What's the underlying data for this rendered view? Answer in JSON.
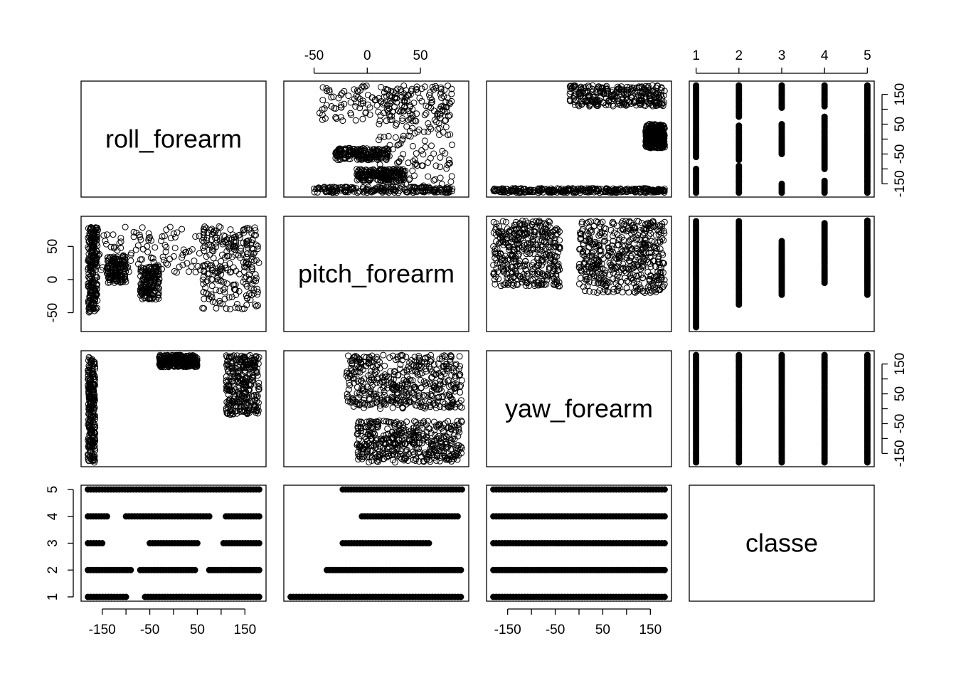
{
  "chart_data": {
    "type": "scatter",
    "layout": "pairs-matrix",
    "variables": [
      {
        "name": "roll_forearm",
        "range": [
          -180,
          180
        ],
        "ticks": [
          -150,
          -100,
          -50,
          0,
          50,
          100,
          150
        ],
        "tick_labels": [
          "-150",
          "",
          "-50",
          "",
          "50",
          "",
          "150"
        ]
      },
      {
        "name": "pitch_forearm",
        "range": [
          -72,
          89
        ],
        "ticks": [
          -50,
          0,
          50
        ],
        "tick_labels": [
          "-50",
          "0",
          "50"
        ]
      },
      {
        "name": "yaw_forearm",
        "range": [
          -180,
          180
        ],
        "ticks": [
          -150,
          -100,
          -50,
          0,
          50,
          100,
          150
        ],
        "tick_labels": [
          "-150",
          "",
          "-50",
          "",
          "50",
          "",
          "150"
        ]
      },
      {
        "name": "classe",
        "range": [
          1,
          5
        ],
        "ticks": [
          1,
          2,
          3,
          4,
          5
        ],
        "tick_labels": [
          "1",
          "2",
          "3",
          "4",
          "5"
        ]
      }
    ],
    "class_coverage": {
      "roll_forearm": {
        "1": [
          [
            -180,
            -100
          ],
          [
            -60,
            180
          ]
        ],
        "2": [
          [
            -180,
            -90
          ],
          [
            -70,
            45
          ],
          [
            75,
            180
          ]
        ],
        "3": [
          [
            -180,
            -150
          ],
          [
            -50,
            50
          ],
          [
            105,
            180
          ]
        ],
        "4": [
          [
            -180,
            -140
          ],
          [
            -100,
            75
          ],
          [
            110,
            180
          ]
        ],
        "5": [
          [
            -180,
            180
          ]
        ]
      },
      "pitch_forearm": {
        "1": [
          [
            -72,
            88
          ]
        ],
        "2": [
          [
            -38,
            88
          ]
        ],
        "3": [
          [
            -23,
            58
          ]
        ],
        "4": [
          [
            -5,
            85
          ]
        ],
        "5": [
          [
            -23,
            89
          ]
        ]
      },
      "yaw_forearm": {
        "1": [
          [
            -180,
            180
          ]
        ],
        "2": [
          [
            -180,
            180
          ]
        ],
        "3": [
          [
            -180,
            180
          ]
        ],
        "4": [
          [
            -180,
            180
          ]
        ],
        "5": [
          [
            -180,
            180
          ]
        ]
      }
    },
    "pairwise_clouds": {
      "roll_vs_pitch": {
        "x": "roll_forearm",
        "y": "pitch_forearm",
        "dense_regions": [
          {
            "x": [
              -180,
              180
            ],
            "y": [
              10,
              80
            ]
          },
          {
            "x": [
              -180,
              -160
            ],
            "y": [
              -50,
              80
            ]
          },
          {
            "x": [
              60,
              180
            ],
            "y": [
              -45,
              80
            ]
          },
          {
            "x": [
              -140,
              -100
            ],
            "y": [
              -10,
              35
            ]
          },
          {
            "x": [
              -70,
              -30
            ],
            "y": [
              -30,
              20
            ]
          }
        ],
        "gaps": [
          {
            "x": [
              -150,
              -80
            ],
            "y": [
              -72,
              -5
            ]
          },
          {
            "x": [
              -30,
              40
            ],
            "y": [
              -72,
              0
            ]
          }
        ]
      },
      "roll_vs_yaw": {
        "x": "roll_forearm",
        "y": "yaw_forearm",
        "dense_regions": [
          {
            "x": [
              -180,
              -165
            ],
            "y": [
              -180,
              180
            ]
          },
          {
            "x": [
              110,
              180
            ],
            "y": [
              -20,
              180
            ]
          },
          {
            "x": [
              -30,
              50
            ],
            "y": [
              140,
              180
            ]
          }
        ]
      },
      "pitch_vs_yaw": {
        "x": "pitch_forearm",
        "y": "yaw_forearm",
        "dense_regions": [
          {
            "x": [
              -20,
              89
            ],
            "y": [
              0,
              180
            ]
          },
          {
            "x": [
              -10,
              89
            ],
            "y": [
              -180,
              -40
            ]
          }
        ]
      }
    }
  }
}
